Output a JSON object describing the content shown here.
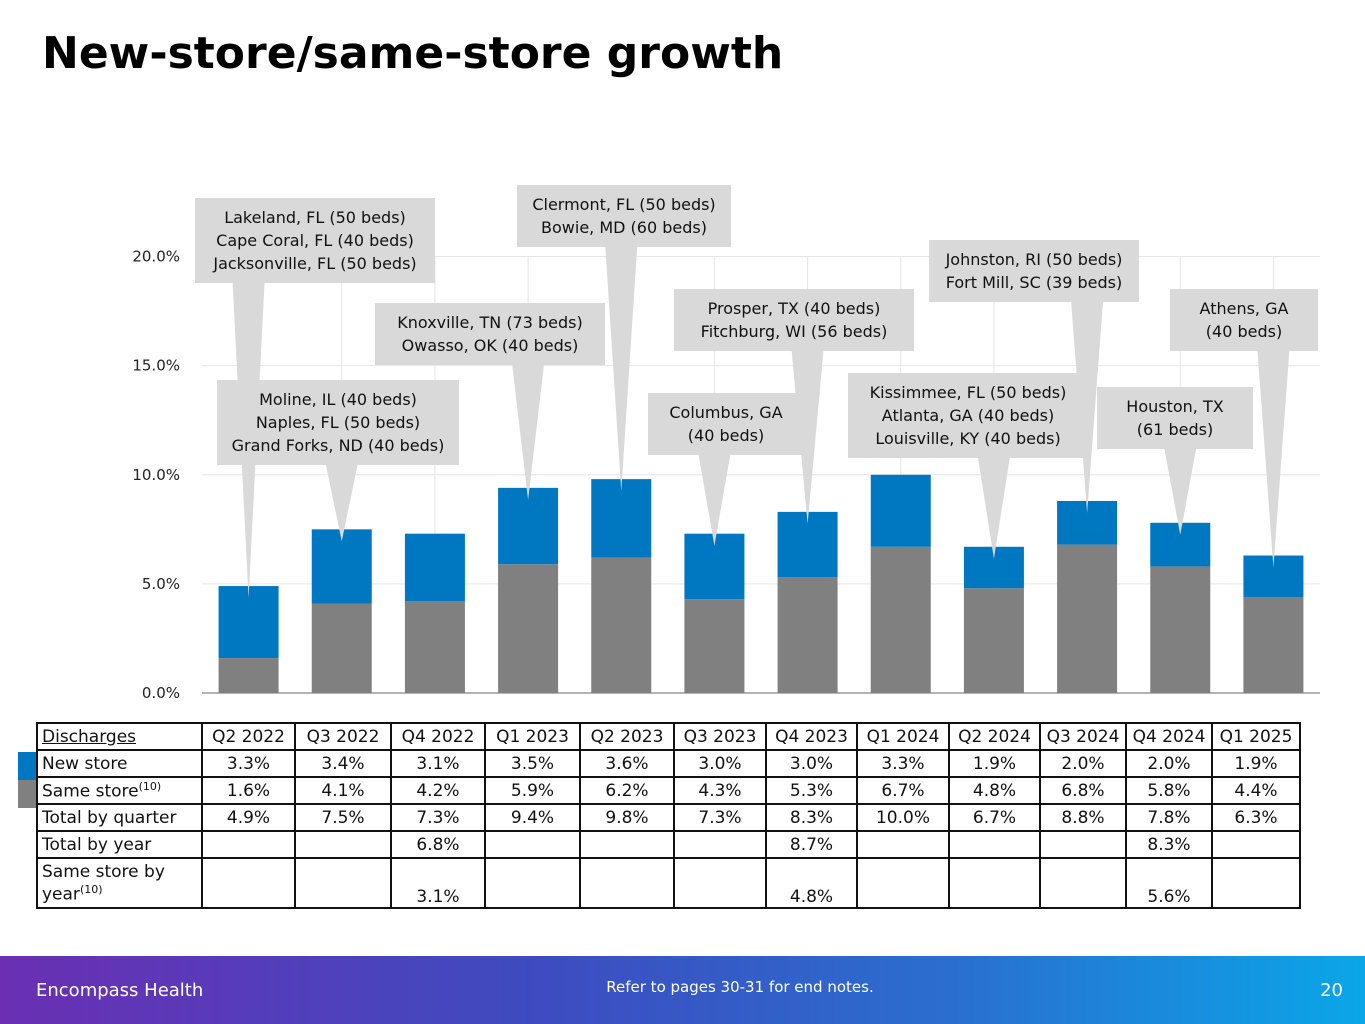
{
  "page": {
    "title": "New-store/same-store growth"
  },
  "colors": {
    "new_store": "#0078C1",
    "same_store": "#808080",
    "callout": "#D9D9D9",
    "grid": "#E6E6E6"
  },
  "chart_data": {
    "type": "bar",
    "stacked": true,
    "title": "New-store/same-store growth",
    "categories": [
      "Q2 2022",
      "Q3 2022",
      "Q4 2022",
      "Q1 2023",
      "Q2 2023",
      "Q3 2023",
      "Q4 2023",
      "Q1 2024",
      "Q2 2024",
      "Q3 2024",
      "Q4 2024",
      "Q1 2025"
    ],
    "series": [
      {
        "name": "Same store",
        "values": [
          1.6,
          4.1,
          4.2,
          5.9,
          6.2,
          4.3,
          5.3,
          6.7,
          4.8,
          6.8,
          5.8,
          4.4
        ]
      },
      {
        "name": "New store",
        "values": [
          3.3,
          3.4,
          3.1,
          3.5,
          3.6,
          3.0,
          3.0,
          3.3,
          1.9,
          2.0,
          2.0,
          1.9
        ]
      }
    ],
    "ylim": [
      0,
      22.5
    ],
    "yticks": [
      "0.0%",
      "5.0%",
      "10.0%",
      "15.0%",
      "20.0%"
    ],
    "ytick_values": [
      0,
      5,
      10,
      15,
      20
    ],
    "grid": true,
    "annotations": [
      {
        "bar": 0,
        "lines": [
          "Lakeland, FL (50 beds)",
          "Cape Coral, FL (40 beds)",
          "Jacksonville, FL (50 beds)"
        ]
      },
      {
        "bar": 1,
        "lines": [
          "Moline, IL (40 beds)",
          "Naples, FL (50 beds)",
          "Grand Forks, ND (40 beds)"
        ]
      },
      {
        "bar": 3,
        "lines": [
          "Knoxville, TN (73 beds)",
          "Owasso, OK (40 beds)"
        ]
      },
      {
        "bar": 4,
        "lines": [
          "Clermont, FL (50 beds)",
          "Bowie, MD (60 beds)"
        ]
      },
      {
        "bar": 5,
        "lines": [
          "Columbus, GA",
          "(40 beds)"
        ]
      },
      {
        "bar": 6,
        "lines": [
          "Prosper, TX (40 beds)",
          "Fitchburg, WI (56 beds)"
        ]
      },
      {
        "bar": 8,
        "lines": [
          "Kissimmee, FL (50 beds)",
          "Atlanta, GA (40 beds)",
          "Louisville, KY (40 beds)"
        ]
      },
      {
        "bar": 9,
        "lines": [
          "Johnston, RI (50 beds)",
          "Fort Mill, SC (39 beds)"
        ]
      },
      {
        "bar": 10,
        "lines": [
          "Houston, TX",
          "(61 beds)"
        ]
      },
      {
        "bar": 11,
        "lines": [
          "Athens, GA",
          "(40 beds)"
        ]
      }
    ]
  },
  "table": {
    "header_label": "Discharges",
    "columns": [
      "Q2 2022",
      "Q3 2022",
      "Q4 2022",
      "Q1 2023",
      "Q2 2023",
      "Q3 2023",
      "Q4 2023",
      "Q1 2024",
      "Q2 2024",
      "Q3 2024",
      "Q4 2024",
      "Q1 2025"
    ],
    "rows": [
      {
        "label": "New store",
        "sup": "",
        "values": [
          "3.3%",
          "3.4%",
          "3.1%",
          "3.5%",
          "3.6%",
          "3.0%",
          "3.0%",
          "3.3%",
          "1.9%",
          "2.0%",
          "2.0%",
          "1.9%"
        ]
      },
      {
        "label": "Same store",
        "sup": "(10)",
        "values": [
          "1.6%",
          "4.1%",
          "4.2%",
          "5.9%",
          "6.2%",
          "4.3%",
          "5.3%",
          "6.7%",
          "4.8%",
          "6.8%",
          "5.8%",
          "4.4%"
        ]
      },
      {
        "label": "Total by quarter",
        "sup": "",
        "values": [
          "4.9%",
          "7.5%",
          "7.3%",
          "9.4%",
          "9.8%",
          "7.3%",
          "8.3%",
          "10.0%",
          "6.7%",
          "8.8%",
          "7.8%",
          "6.3%"
        ]
      },
      {
        "label": "Total by year",
        "sup": "",
        "values": [
          "",
          "",
          "6.8%",
          "",
          "",
          "",
          "8.7%",
          "",
          "",
          "",
          "8.3%",
          ""
        ]
      },
      {
        "label_line1": "Same store by",
        "label_line2": "year",
        "sup": "(10)",
        "values": [
          "",
          "",
          "3.1%",
          "",
          "",
          "",
          "4.8%",
          "",
          "",
          "",
          "5.6%",
          ""
        ]
      }
    ]
  },
  "footer": {
    "brand": "Encompass Health",
    "note": "Refer to pages 30-31 for end notes.",
    "page_number": "20"
  }
}
